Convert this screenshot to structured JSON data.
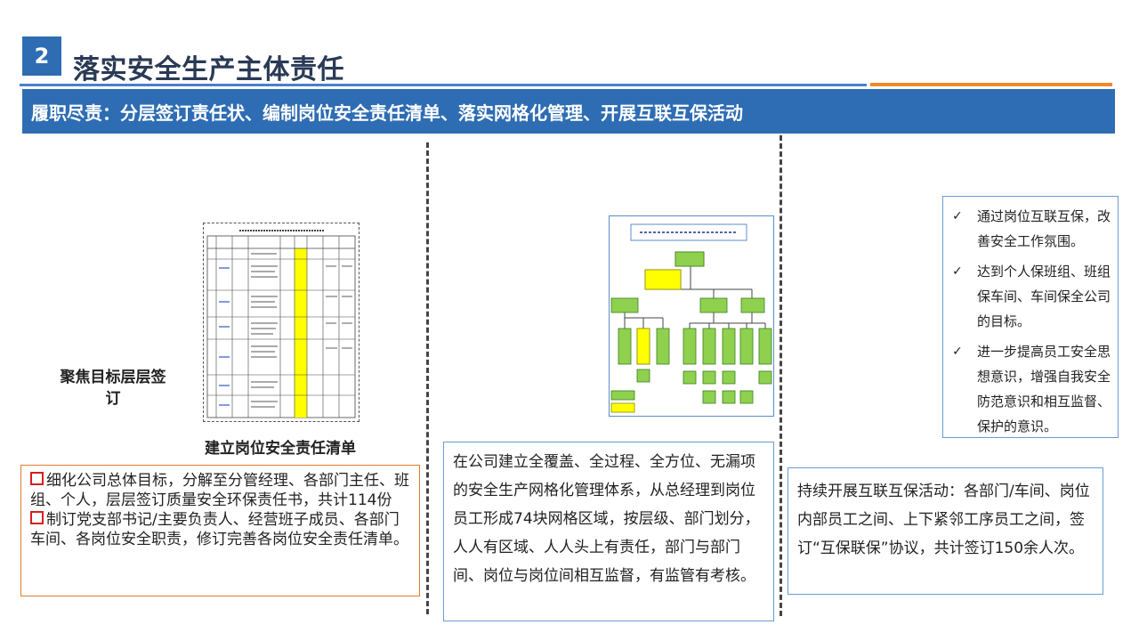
{
  "header": {
    "number": "2",
    "title": "落实安全生产主体责任"
  },
  "banner": {
    "text": "履职尽责：分层签订责任状、编制岗位安全责任清单、落实网格化管理、开展互联互保活动"
  },
  "left": {
    "focus_label": "聚焦目标层层签订",
    "caption": "建立岗位安全责任清单",
    "items": [
      "细化公司总体目标，分解至分管经理、各部门主任、班组、个人，层层签订质量安全环保责任书，共计114份",
      "制订党支部书记/主要负责人、经营班子成员、各部门车间、各岗位安全职责，修订完善各岗位安全责任清单。"
    ]
  },
  "middle": {
    "text": "在公司建立全覆盖、全过程、全方位、无漏项的安全生产网格化管理体系，从总经理到岗位员工形成74块网格区域，按层级、部门划分，人人有区域、人人头上有责任，部门与部门间、岗位与岗位间相互监督，有监管有考核。"
  },
  "right": {
    "checks": [
      "通过岗位互联互保，改善安全工作氛围。",
      "达到个人保班组、班组保车间、车间保全公司的目标。",
      "进一步提高员工安全思想意识，增强自我安全防范意识和相互监督、保护的意识。"
    ],
    "check_icon": "✓",
    "text": "持续开展互联互保活动：各部门/车间、岗位内部员工之间、上下紧邻工序员工之间，签订“互保联保”协议，共计签订150余人次。"
  },
  "colors": {
    "accent_blue": "#2e6db3",
    "accent_orange": "#ef8a2b",
    "box_orange": "#e07d2a",
    "box_blue": "#6a9ccd",
    "chart_green": "#8fd14f",
    "highlight_yellow": "#ffff00"
  }
}
